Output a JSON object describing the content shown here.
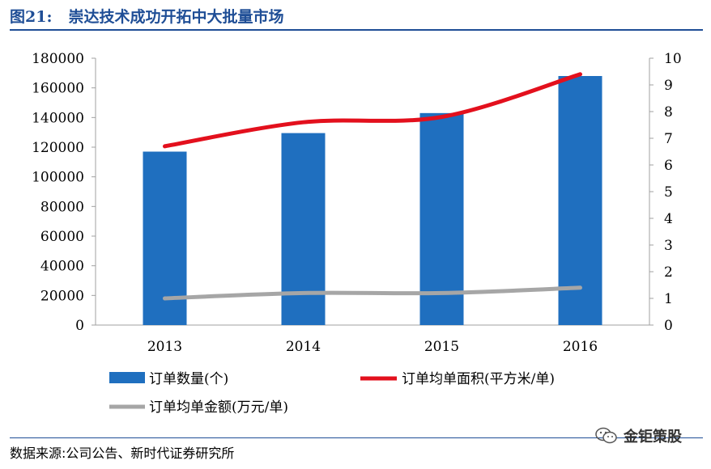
{
  "header": {
    "figure_number": "图21:",
    "figure_title": "崇达技术成功开拓中大批量市场"
  },
  "footer": {
    "source": "数据来源:公司公告、新时代证券研究所",
    "watermark": "金钜策股",
    "watermark_icon": "wechat-icon"
  },
  "colors": {
    "title": "#1f4e96",
    "bars": "#1f6fbf",
    "area_line": "#e3101d",
    "amount_line": "#a6a6a6"
  },
  "chart_data": {
    "type": "bar",
    "categories": [
      "2013",
      "2014",
      "2015",
      "2016"
    ],
    "left_axis": {
      "ylim": [
        0,
        180000
      ],
      "ticks": [
        "0",
        "20000",
        "40000",
        "60000",
        "80000",
        "100000",
        "120000",
        "140000",
        "160000",
        "180000"
      ]
    },
    "right_axis": {
      "ylim": [
        0,
        10
      ],
      "ticks": [
        "0",
        "1",
        "2",
        "3",
        "4",
        "5",
        "6",
        "7",
        "8",
        "9",
        "10"
      ]
    },
    "series": [
      {
        "name": "订单数量(个)",
        "type": "bar",
        "axis": "left",
        "values": [
          117000,
          129500,
          143000,
          168000
        ]
      },
      {
        "name": "订单均单面积(平方米/单)",
        "type": "line",
        "axis": "right",
        "smooth": true,
        "values": [
          6.7,
          7.6,
          7.8,
          9.4
        ]
      },
      {
        "name": "订单均单金额(万元/单)",
        "type": "line",
        "axis": "right",
        "smooth": true,
        "values": [
          1.0,
          1.2,
          1.2,
          1.4
        ]
      }
    ],
    "legend_position": "bottom",
    "grid": false
  }
}
